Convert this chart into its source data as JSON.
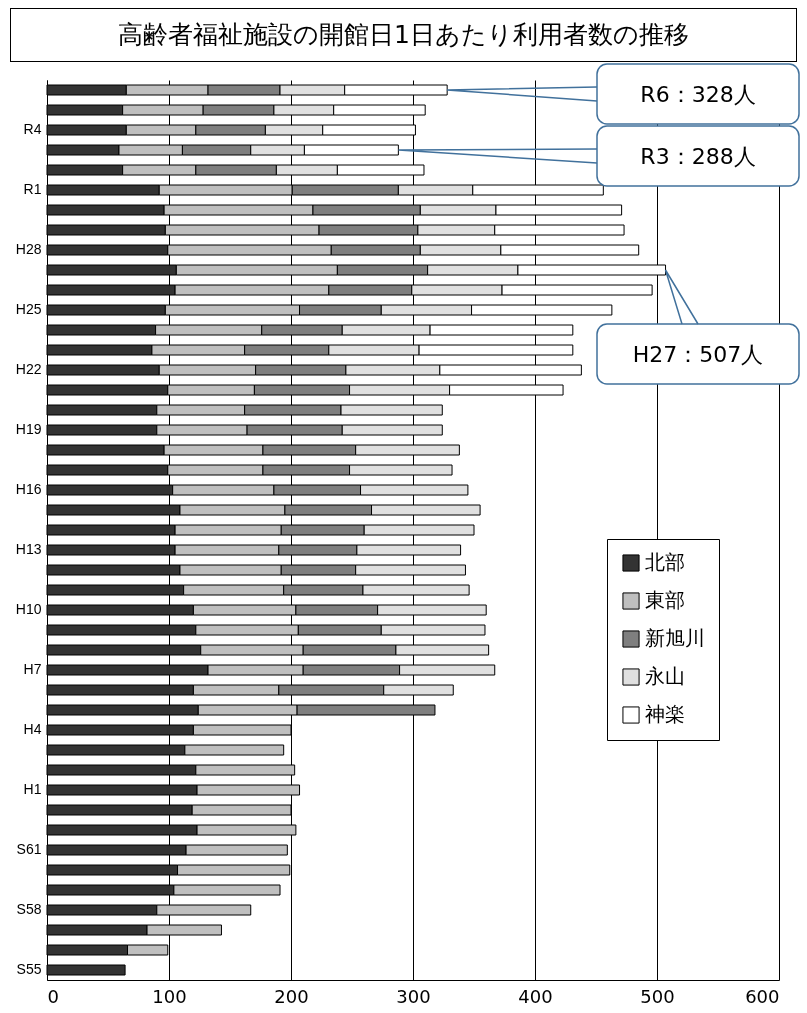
{
  "chart_data": {
    "type": "bar",
    "orientation": "horizontal",
    "stacked": true,
    "title": "高齢者福祉施設の開館日1日あたり利用者数の推移",
    "categories": [
      null,
      null,
      "R4",
      null,
      null,
      "R1",
      null,
      null,
      "H28",
      null,
      null,
      "H25",
      null,
      null,
      "H22",
      null,
      null,
      "H19",
      null,
      null,
      "H16",
      null,
      null,
      "H13",
      null,
      null,
      "H10",
      null,
      null,
      "H7",
      null,
      null,
      "H4",
      null,
      null,
      "H1",
      null,
      null,
      "S61",
      null,
      null,
      "S58",
      null,
      null,
      "S55"
    ],
    "series": [
      {
        "name": "北部",
        "color": "#333333",
        "values": [
          65,
          62,
          65,
          59,
          62,
          92,
          96,
          97,
          99,
          106,
          105,
          97,
          89,
          86,
          92,
          99,
          90,
          90,
          96,
          99,
          103,
          109,
          105,
          105,
          109,
          112,
          120,
          122,
          126,
          132,
          120,
          124,
          120,
          113,
          122,
          123,
          119,
          123,
          114,
          107,
          104,
          90,
          82,
          66,
          64
        ]
      },
      {
        "name": "東部",
        "color": "#bfbfbf",
        "values": [
          67,
          66,
          57,
          52,
          60,
          109,
          122,
          126,
          134,
          132,
          126,
          110,
          87,
          76,
          79,
          71,
          72,
          74,
          81,
          78,
          83,
          86,
          87,
          85,
          83,
          82,
          84,
          84,
          84,
          78,
          70,
          81,
          80,
          81,
          81,
          84,
          81,
          81,
          83,
          92,
          87,
          77,
          61,
          33,
          null
        ]
      },
      {
        "name": "新旭川",
        "color": "#7f7f7f",
        "values": [
          59,
          58,
          57,
          56,
          66,
          87,
          88,
          81,
          73,
          74,
          68,
          67,
          66,
          69,
          74,
          78,
          79,
          78,
          76,
          71,
          71,
          71,
          68,
          64,
          61,
          65,
          67,
          68,
          76,
          79,
          86,
          113,
          null,
          null,
          null,
          null,
          null,
          null,
          null,
          null,
          null,
          null,
          null,
          null,
          null
        ]
      },
      {
        "name": "永山",
        "color": "#e0e0e0",
        "values": [
          53,
          49,
          47,
          44,
          50,
          61,
          62,
          63,
          66,
          74,
          74,
          74,
          72,
          74,
          77,
          82,
          83,
          82,
          85,
          84,
          88,
          89,
          90,
          85,
          90,
          87,
          89,
          85,
          76,
          78,
          57,
          null,
          null,
          null,
          null,
          null,
          null,
          null,
          null,
          null,
          null,
          null,
          null,
          null,
          null
        ]
      },
      {
        "name": "神楽",
        "color": "#ffffff",
        "values": [
          84,
          75,
          76,
          77,
          71,
          107,
          103,
          106,
          113,
          121,
          123,
          115,
          117,
          126,
          116,
          93,
          null,
          null,
          null,
          null,
          null,
          null,
          null,
          null,
          null,
          null,
          null,
          null,
          null,
          null,
          null,
          null,
          null,
          null,
          null,
          null,
          null,
          null,
          null,
          null,
          null,
          null,
          null,
          null,
          null
        ]
      }
    ],
    "xlim": [
      0,
      600
    ],
    "xticks": [
      0,
      100,
      200,
      300,
      400,
      500,
      600
    ],
    "grid": "x",
    "legend": "right",
    "annotations": [
      "R6：328人",
      "R3：288人",
      "H27：507人"
    ]
  }
}
